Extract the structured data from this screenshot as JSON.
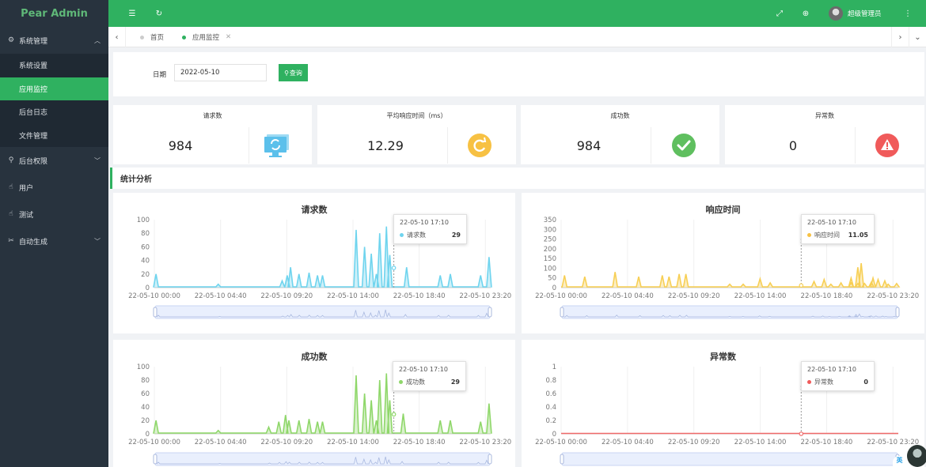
{
  "app": {
    "title": "Pear Admin"
  },
  "sidebar": {
    "groups": [
      {
        "label": "系统管理",
        "icon": "gear-icon",
        "expanded": true,
        "items": [
          {
            "label": "系统设置",
            "active": false
          },
          {
            "label": "应用监控",
            "active": true
          },
          {
            "label": "后台日志",
            "active": false
          },
          {
            "label": "文件管理",
            "active": false
          }
        ]
      },
      {
        "label": "后台权限",
        "icon": "user-icon",
        "expanded": false
      },
      {
        "label": "用户",
        "icon": "hand-icon",
        "expanded": false
      },
      {
        "label": "测试",
        "icon": "hand-icon",
        "expanded": false
      },
      {
        "label": "自动生成",
        "icon": "tools-icon",
        "expanded": false
      }
    ]
  },
  "header": {
    "username": "超级管理员"
  },
  "tabs": [
    {
      "label": "首页",
      "active": false
    },
    {
      "label": "应用监控",
      "active": true,
      "closable": true
    }
  ],
  "search": {
    "date_label": "日期",
    "date_value": "2022-05-10",
    "query_label": "查询"
  },
  "stats": [
    {
      "title": "请求数",
      "value": "984",
      "icon": "monitor-refresh-icon",
      "color": "#5bc0eb"
    },
    {
      "title": "平均响应时间（ms）",
      "value": "12.29",
      "icon": "refresh-circle-icon",
      "color": "#f7c143"
    },
    {
      "title": "成功数",
      "value": "984",
      "icon": "check-circle-icon",
      "color": "#5fbf5f"
    },
    {
      "title": "异常数",
      "value": "0",
      "icon": "alert-triangle-icon",
      "color": "#f05a5a"
    }
  ],
  "section": {
    "title": "统计分析"
  },
  "chart_data": [
    {
      "type": "area",
      "title": "请求数",
      "color": "#6fd4ee",
      "x_ticks": [
        "22-05-10 00:00",
        "22-05-10 04:40",
        "22-05-10 09:20",
        "22-05-10 14:00",
        "22-05-10 18:40",
        "22-05-10 23:20"
      ],
      "y_ticks": [
        "0",
        "20",
        "40",
        "60",
        "80",
        "100"
      ],
      "ylim": [
        0,
        100
      ],
      "tooltip": {
        "time": "22-05-10 17:10",
        "series": "请求数",
        "value": "29"
      }
    },
    {
      "type": "area",
      "title": "响应时间",
      "color": "#f7cf55",
      "x_ticks": [
        "22-05-10 00:00",
        "22-05-10 04:40",
        "22-05-10 09:20",
        "22-05-10 14:00",
        "22-05-10 18:40",
        "22-05-10 23:20"
      ],
      "y_ticks": [
        "0",
        "50",
        "100",
        "150",
        "200",
        "250",
        "300",
        "350"
      ],
      "ylim": [
        0,
        350
      ],
      "tooltip": {
        "time": "22-05-10 17:10",
        "series": "响应时间",
        "value": "11.05"
      }
    },
    {
      "type": "area",
      "title": "成功数",
      "color": "#8fd76a",
      "x_ticks": [
        "22-05-10 00:00",
        "22-05-10 04:40",
        "22-05-10 09:20",
        "22-05-10 14:00",
        "22-05-10 18:40",
        "22-05-10 23:20"
      ],
      "y_ticks": [
        "0",
        "20",
        "40",
        "60",
        "80",
        "100"
      ],
      "ylim": [
        0,
        100
      ],
      "tooltip": {
        "time": "22-05-10 17:10",
        "series": "成功数",
        "value": "29"
      }
    },
    {
      "type": "line",
      "title": "异常数",
      "color": "#f06a6a",
      "x_ticks": [
        "22-05-10 00:00",
        "22-05-10 04:40",
        "22-05-10 09:20",
        "22-05-10 14:00",
        "22-05-10 18:40",
        "22-05-10 23:20"
      ],
      "y_ticks": [
        "0",
        "0.2",
        "0.4",
        "0.6",
        "0.8",
        "1"
      ],
      "ylim": [
        0,
        1
      ],
      "tooltip": {
        "time": "22-05-10 17:10",
        "series": "异常数",
        "value": "0"
      }
    }
  ],
  "ime": {
    "label": "英"
  }
}
